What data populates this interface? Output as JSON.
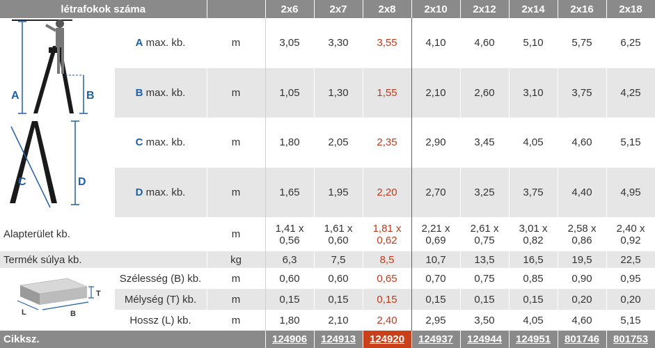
{
  "header": {
    "title": "létrafokok száma",
    "columns": [
      "2x6",
      "2x7",
      "2x8",
      "2x10",
      "2x12",
      "2x14",
      "2x16",
      "2x18"
    ]
  },
  "rows": {
    "A": {
      "letter": "A",
      "label": "max. kb.",
      "unit": "m",
      "values": [
        "3,05",
        "3,30",
        "3,55",
        "4,10",
        "4,60",
        "5,10",
        "5,75",
        "6,25"
      ]
    },
    "B": {
      "letter": "B",
      "label": "max. kb.",
      "unit": "m",
      "values": [
        "1,05",
        "1,30",
        "1,55",
        "2,10",
        "2,60",
        "3,10",
        "3,75",
        "4,25"
      ]
    },
    "C": {
      "letter": "C",
      "label": "max. kb.",
      "unit": "m",
      "values": [
        "1,80",
        "2,05",
        "2,35",
        "2,90",
        "3,45",
        "4,05",
        "4,60",
        "5,15"
      ]
    },
    "D": {
      "letter": "D",
      "label": "max. kb.",
      "unit": "m",
      "values": [
        "1,65",
        "1,95",
        "2,20",
        "2,70",
        "3,25",
        "3,75",
        "4,40",
        "4,95"
      ]
    }
  },
  "area": {
    "label": "Alapterület kb.",
    "unit": "m",
    "values": [
      [
        "1,41 x",
        "0,56"
      ],
      [
        "1,61 x",
        "0,60"
      ],
      [
        "1,81 x",
        "0,62"
      ],
      [
        "2,21 x",
        "0,69"
      ],
      [
        "2,61 x",
        "0,75"
      ],
      [
        "3,01 x",
        "0,82"
      ],
      [
        "2,58 x",
        "0,86"
      ],
      [
        "2,40 x",
        "0,92"
      ]
    ]
  },
  "weight": {
    "label": "Termék súlya kb.",
    "unit": "kg",
    "values": [
      "6,3",
      "7,5",
      "8,5",
      "10,7",
      "13,5",
      "16,5",
      "19,5",
      "22,5"
    ]
  },
  "pack": {
    "width": {
      "label": "Szélesség (B) kb.",
      "unit": "m",
      "values": [
        "0,60",
        "0,60",
        "0,65",
        "0,70",
        "0,75",
        "0,85",
        "0,90",
        "0,95"
      ]
    },
    "depth": {
      "label": "Mélység (T) kb.",
      "unit": "m",
      "values": [
        "0,15",
        "0,15",
        "0,15",
        "0,15",
        "0,15",
        "0,15",
        "0,20",
        "0,20"
      ]
    },
    "length": {
      "label": "Hossz (L) kb.",
      "unit": "m",
      "values": [
        "1,80",
        "2,10",
        "2,40",
        "2,95",
        "3,50",
        "4,05",
        "4,60",
        "5,15"
      ]
    },
    "box_labels": {
      "T": "T",
      "L": "L",
      "B": "B"
    }
  },
  "footer": {
    "label": "Cikksz.",
    "codes": [
      "124906",
      "124913",
      "124920",
      "124937",
      "124944",
      "124951",
      "801746",
      "801753"
    ]
  },
  "diagram_labels": {
    "A": "A",
    "B": "B",
    "C": "C",
    "D": "D"
  },
  "colors": {
    "header": "#8a8a8a",
    "highlight": "#c9401a",
    "letter": "#1f5fa6",
    "stripe": "#e6e6e6"
  }
}
